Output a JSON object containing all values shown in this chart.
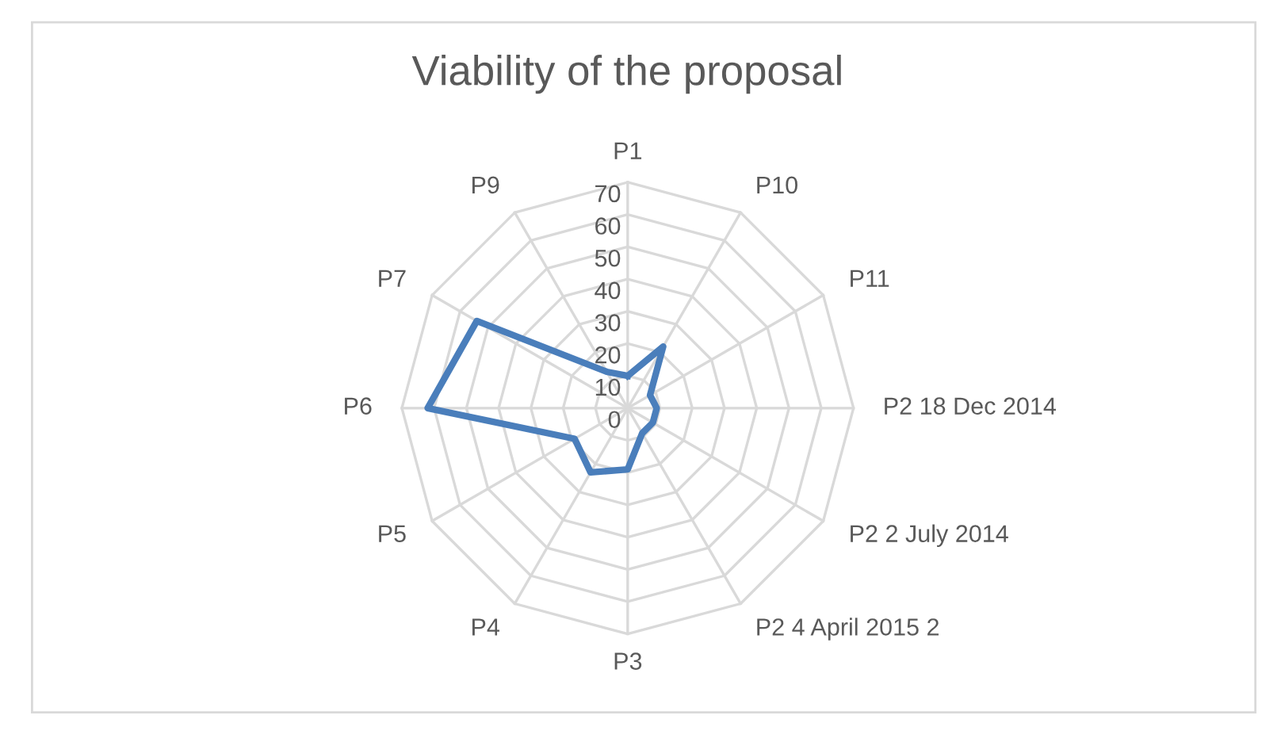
{
  "chart_data": {
    "type": "radar",
    "title": "Viability of the proposal",
    "categories": [
      "P1",
      "P10",
      "P11",
      "P2 18 Dec 2014",
      "P2 2 July 2014",
      "P2 4 April 2015 2",
      "P3",
      "P4",
      "P5",
      "P6",
      "P7",
      "P9"
    ],
    "series": [
      {
        "color": "#4a7ebb",
        "values": [
          10,
          22,
          8,
          9,
          9,
          9,
          19,
          23,
          19,
          62,
          54,
          13
        ]
      }
    ],
    "ylim": [
      0,
      70
    ],
    "yticks": [
      0,
      10,
      20,
      30,
      40,
      50,
      60,
      70
    ],
    "grid": true
  }
}
